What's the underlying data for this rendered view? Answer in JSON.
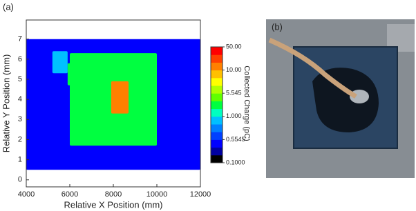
{
  "chart_data": {
    "type": "heatmap",
    "panel_label": "(a)",
    "xlabel": "Relative X Position (mm)",
    "ylabel": "Relative Y Position (mm)",
    "xlim": [
      4000,
      12000
    ],
    "xticks": [
      4000,
      6000,
      8000,
      10000,
      12000
    ],
    "ylim": [
      -0.35,
      7.95
    ],
    "yticks": [
      0,
      1,
      2,
      3,
      4,
      5,
      6,
      7
    ],
    "regions": [
      {
        "x": [
          4000,
          12000
        ],
        "y": [
          0.5,
          7
        ],
        "value": 0.35
      },
      {
        "x": [
          5200,
          5900
        ],
        "y": [
          5.3,
          6.4
        ],
        "value": 0.8
      },
      {
        "x": [
          6000,
          10000
        ],
        "y": [
          1.7,
          6.3
        ],
        "value": 2
      },
      {
        "x": [
          5900,
          6700
        ],
        "y": [
          4.7,
          5.8
        ],
        "value": 3
      },
      {
        "x": [
          7900,
          8700
        ],
        "y": [
          3.3,
          4.9
        ],
        "value": 20
      }
    ],
    "colorbar_label": "Collected Charge (pC)",
    "colorbar_ticks": [
      {
        "value": 0.1,
        "label": "0.1000"
      },
      {
        "value": 0.5545,
        "label": "0.5545"
      },
      {
        "value": 1,
        "label": "1.000"
      },
      {
        "value": 5.545,
        "label": "5.545"
      },
      {
        "value": 10,
        "label": "10.00"
      },
      {
        "value": 50,
        "label": "50.00"
      }
    ],
    "colormap": [
      "#000000",
      "#0000a0",
      "#0000ff",
      "#0040ff",
      "#0080ff",
      "#00c0ff",
      "#00ffc0",
      "#00ff40",
      "#60ff00",
      "#b0ff00",
      "#ffff00",
      "#ffc000",
      "#ff8000",
      "#ff4000",
      "#ff0000"
    ]
  },
  "photo_panel_label": "(b)"
}
